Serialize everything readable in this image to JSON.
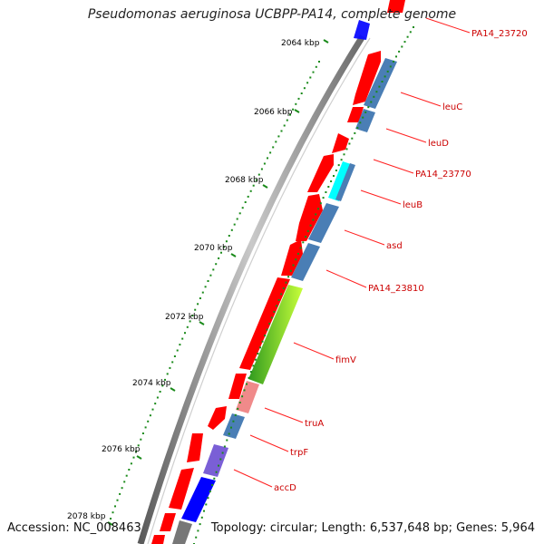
{
  "title": "Pseudomonas aeruginosa UCBPP-PA14, complete genome",
  "footer": {
    "accession": "Accession: NC_008463",
    "topology": "Topology: circular; Length: 6,537,648 bp; Genes: 5,964"
  },
  "colors": {
    "backbone": "#8a8a8a",
    "forward_cds": "#ff0000",
    "reverse_cds": "#4a7eb5",
    "tick_minor": "#1a8a1a",
    "label": "#cc0000",
    "label_line": "#ff0000"
  },
  "kbp_ticks": [
    "2064 kbp",
    "2066 kbp",
    "2068 kbp",
    "2070 kbp",
    "2072 kbp",
    "2074 kbp",
    "2076 kbp",
    "2078 kbp"
  ],
  "gene_labels": [
    "PA14_23720",
    "leuC",
    "leuD",
    "PA14_23770",
    "leuB",
    "asd",
    "PA14_23810",
    "fimV",
    "truA",
    "trpF",
    "accD"
  ]
}
